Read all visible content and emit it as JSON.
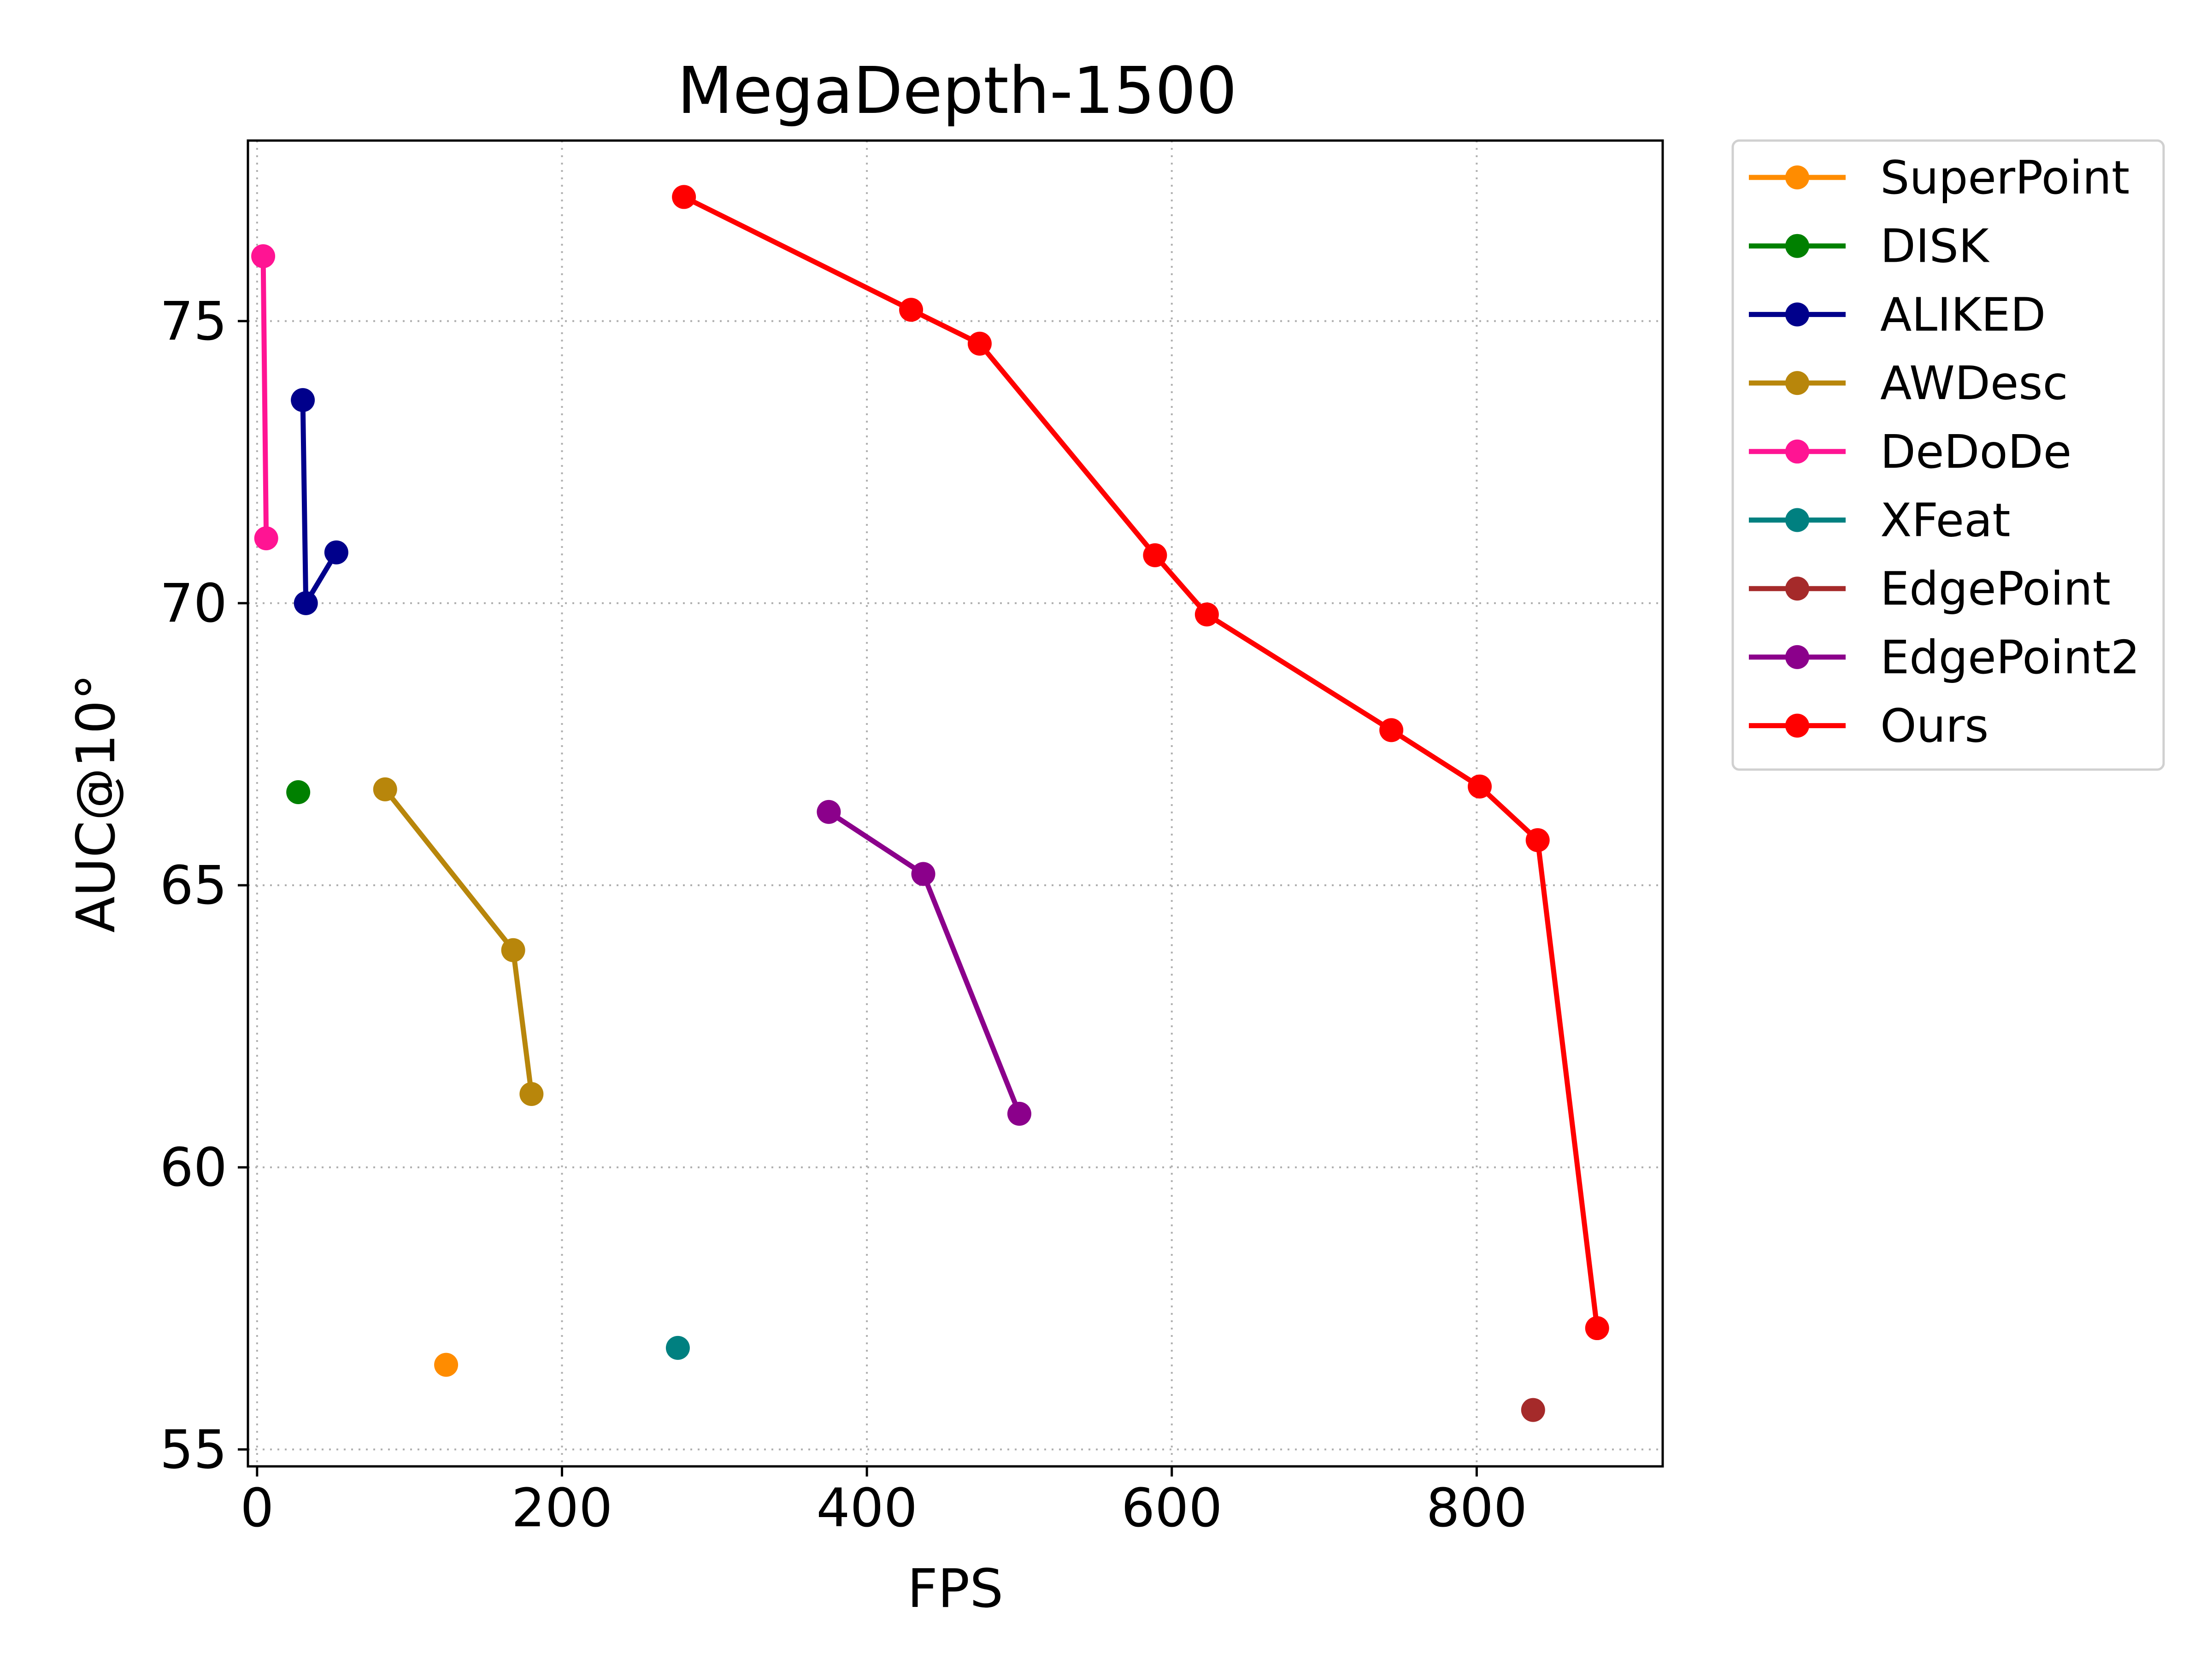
{
  "chart_data": {
    "type": "line",
    "title": "MegaDepth-1500",
    "xlabel": "FPS",
    "ylabel": "AUC@10°",
    "xlim": [
      -6,
      922
    ],
    "ylim": [
      54.7,
      78.2
    ],
    "xticks": [
      0,
      200,
      400,
      600,
      800
    ],
    "yticks": [
      55,
      60,
      65,
      70,
      75
    ],
    "grid": true,
    "legend_position": "outside-upper-right",
    "series": [
      {
        "name": "SuperPoint",
        "color": "#ff8c00",
        "points": [
          [
            124,
            56.5
          ]
        ]
      },
      {
        "name": "DISK",
        "color": "#008000",
        "points": [
          [
            27,
            66.65
          ]
        ]
      },
      {
        "name": "ALIKED",
        "color": "#00008b",
        "points": [
          [
            30,
            73.6
          ],
          [
            32,
            70.0
          ],
          [
            52,
            70.9
          ]
        ]
      },
      {
        "name": "AWDesc",
        "color": "#b8860b",
        "points": [
          [
            84,
            66.7
          ],
          [
            168,
            63.85
          ],
          [
            180,
            61.3
          ]
        ]
      },
      {
        "name": "DeDoDe",
        "color": "#ff1493",
        "points": [
          [
            4,
            76.15
          ],
          [
            6,
            71.15
          ]
        ]
      },
      {
        "name": "XFeat",
        "color": "#008080",
        "points": [
          [
            276,
            56.8
          ]
        ]
      },
      {
        "name": "EdgePoint",
        "color": "#a52a2a",
        "points": [
          [
            837,
            55.7
          ]
        ]
      },
      {
        "name": "EdgePoint2",
        "color": "#8b008b",
        "points": [
          [
            375,
            66.3
          ],
          [
            437,
            65.2
          ],
          [
            500,
            60.95
          ]
        ]
      },
      {
        "name": "Ours",
        "color": "#ff0000",
        "points": [
          [
            280,
            77.2
          ],
          [
            429,
            75.2
          ],
          [
            474,
            74.6
          ],
          [
            589,
            70.85
          ],
          [
            623,
            69.8
          ],
          [
            744,
            67.75
          ],
          [
            802,
            66.75
          ],
          [
            840,
            65.8
          ],
          [
            879,
            57.15
          ]
        ]
      }
    ]
  }
}
